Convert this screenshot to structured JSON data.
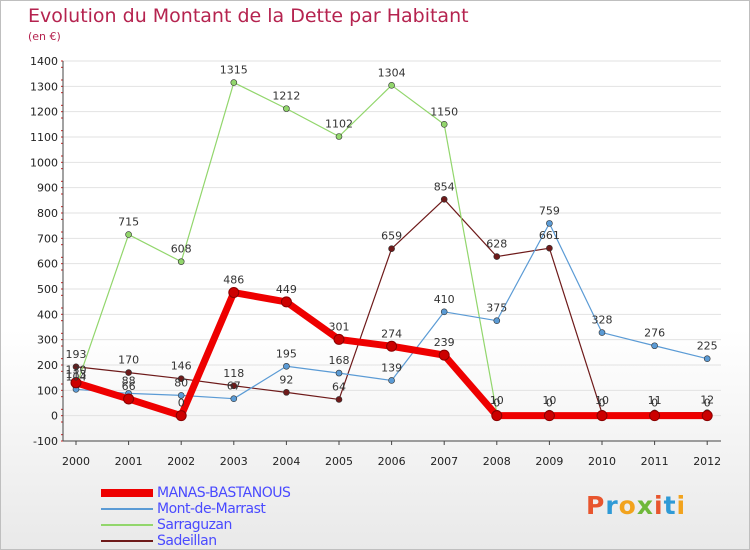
{
  "title": "Evolution du Montant de la Dette par Habitant",
  "subtitle": "(en €)",
  "logo": {
    "text": "Proxiti",
    "colors": [
      "#e8552e",
      "#2f9ad6",
      "#f2a31d",
      "#6fb83a",
      "#e8552e",
      "#2f9ad6",
      "#f2a31d"
    ]
  },
  "chart_data": {
    "type": "line",
    "x": [
      "2000",
      "2001",
      "2002",
      "2003",
      "2004",
      "2005",
      "2006",
      "2007",
      "2008",
      "2009",
      "2010",
      "2011",
      "2012"
    ],
    "ylim": [
      -100,
      1400
    ],
    "yticks": [
      -100,
      0,
      100,
      200,
      300,
      400,
      500,
      600,
      700,
      800,
      900,
      1000,
      1100,
      1200,
      1300,
      1400
    ],
    "grid": "horizontal",
    "legend_position": "bottom",
    "series": [
      {
        "name": "Sadeillan",
        "color": "#6e1a1a",
        "width": 1.2,
        "values": [
          193,
          170,
          146,
          118,
          92,
          64,
          659,
          854,
          628,
          661,
          10,
          11,
          12
        ],
        "labels": [
          "193",
          "170",
          "146",
          "118",
          "92",
          "64",
          "659",
          "854",
          "628",
          "661",
          "10",
          "11",
          "12"
        ]
      },
      {
        "name": "Sarraguzan",
        "color": "#92d66c",
        "width": 1.2,
        "values": [
          113,
          715,
          608,
          1315,
          1212,
          1102,
          1304,
          1150,
          10,
          10,
          null,
          null,
          null
        ],
        "labels": [
          "113",
          "715",
          "608",
          "1315",
          "1212",
          "1102",
          "1304",
          "1150",
          "10",
          "10",
          "",
          "",
          ""
        ]
      },
      {
        "name": "Mont-de-Marrast",
        "color": "#5b9bd5",
        "width": 1.2,
        "values": [
          104,
          88,
          80,
          67,
          195,
          168,
          139,
          410,
          375,
          759,
          328,
          276,
          225
        ],
        "labels": [
          "104",
          "88",
          "80",
          "67",
          "195",
          "168",
          "139",
          "410",
          "375",
          "759",
          "328",
          "276",
          "225"
        ]
      },
      {
        "name": "MANAS-BASTANOUS",
        "color": "#ee0000",
        "width": 7,
        "values": [
          130,
          66,
          0,
          486,
          449,
          301,
          274,
          239,
          0,
          0,
          0,
          0,
          0
        ],
        "labels": [
          "130",
          "66",
          "0",
          "486",
          "449",
          "301",
          "274",
          "239",
          "0",
          "0",
          "0",
          "0",
          "0"
        ]
      }
    ]
  }
}
